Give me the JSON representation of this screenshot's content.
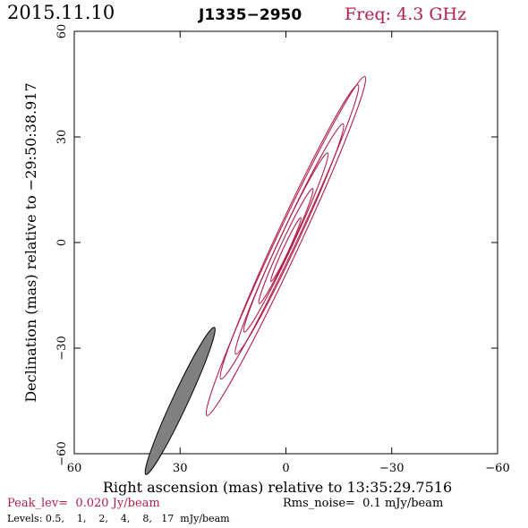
{
  "header": {
    "date": "2015.11.10",
    "source": "J1335−2950",
    "frequency": "Freq: 4.3 GHz"
  },
  "colors": {
    "accent": "#b0204a",
    "axis": "#000000",
    "beam_fill": "#808080"
  },
  "chart_data": {
    "type": "contour",
    "xlabel": "Right ascension (mas) relative to 13:35:29.7516",
    "ylabel": "Declination (mas) relative to −29:50:38.917",
    "xlim": [
      60,
      -60
    ],
    "ylim": [
      -60,
      60
    ],
    "x_ticks": [
      60,
      30,
      0,
      -30,
      -60
    ],
    "x_tick_labels": [
      "60",
      "30",
      "0",
      "−30",
      "−60"
    ],
    "y_ticks": [
      -60,
      -30,
      0,
      30,
      60
    ],
    "y_tick_labels": [
      "−60",
      "−30",
      "0",
      "30",
      "60"
    ],
    "contours": [
      {
        "level": 0.5,
        "center": [
          0,
          -1
        ],
        "major": 53,
        "minor": 3.4,
        "pa": 25
      },
      {
        "level": 1,
        "center": [
          -1,
          3
        ],
        "major": 46,
        "minor": 3.0,
        "pa": 25
      },
      {
        "level": 2,
        "center": [
          -1,
          1
        ],
        "major": 36,
        "minor": 2.5,
        "pa": 25
      },
      {
        "level": 4,
        "center": [
          0,
          0
        ],
        "major": 28,
        "minor": 2.0,
        "pa": 25
      },
      {
        "level": 8,
        "center": [
          0,
          -1
        ],
        "major": 18,
        "minor": 1.4,
        "pa": 25
      },
      {
        "level": 17,
        "center": [
          0,
          -2
        ],
        "major": 10,
        "minor": 0.8,
        "pa": 25
      }
    ],
    "beam": {
      "center": [
        30,
        -45
      ],
      "major": 23,
      "minor": 2.2,
      "pa": 25
    }
  },
  "footer": {
    "peak": "Peak_lev=  0.020 Jy/beam",
    "rms": "Rms_noise=  0.1 mJy/beam",
    "levels": "Levels: 0.5,    1,    2,    4,    8,   17  mJy/beam"
  }
}
